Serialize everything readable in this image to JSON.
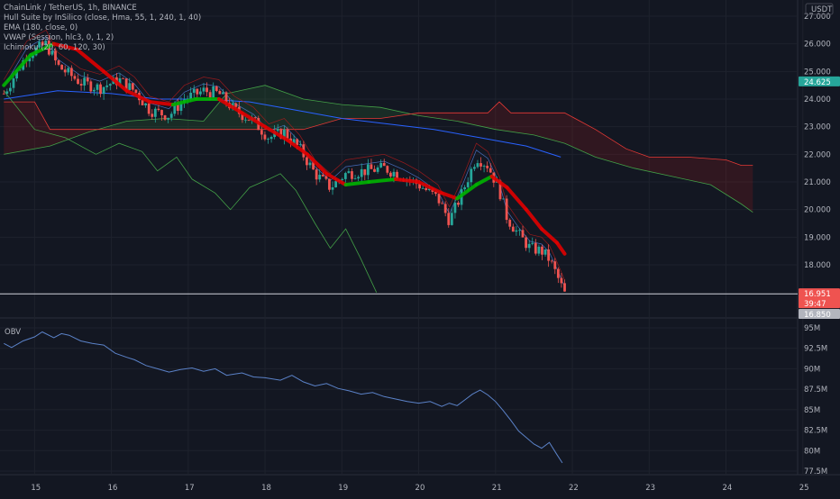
{
  "legend": [
    "ChainLink / TetherUS, 1h, BINANCE",
    "Hull Suite by InSilico (close, Hma, 55, 1, 240, 1, 40)",
    "EMA (180, close, 0)",
    "VWAP (Session, hlc3, 0, 1, 2)",
    "Ichimoku (20, 60, 120, 30)"
  ],
  "currency": "USDT",
  "colors": {
    "background": "#131722",
    "up": "#26a69a",
    "down": "#ef5350",
    "hull_up": "#00b300",
    "hull_down": "#e00000",
    "ema": "#2962ff",
    "vwap": "#5b8ff9",
    "cloud_green": "#388e3c",
    "cloud_red": "#b71c1c",
    "obv": "#5b82c8"
  },
  "chart_data": [
    {
      "type": "candlestick",
      "title": "ChainLink / TetherUS, 1h, BINANCE",
      "x_ticks": [
        "15",
        "16",
        "17",
        "18",
        "19",
        "20",
        "21",
        "22",
        "23",
        "24",
        "25"
      ],
      "y_ticks": [
        "27.000",
        "26.000",
        "25.000",
        "24.000",
        "23.000",
        "22.000",
        "21.000",
        "20.000",
        "19.000",
        "18.000"
      ],
      "ylim": [
        16.85,
        27.2
      ],
      "xlim": [
        14.55,
        25.05
      ],
      "price_labels": [
        {
          "text": "24.625",
          "value": 24.625,
          "color": "#26a69a"
        },
        {
          "text": "16.951",
          "value": 16.951,
          "color": "#ef5350",
          "countdown": "39:47"
        },
        {
          "text": "16.850",
          "value": 16.85,
          "color": "#b2b5be"
        }
      ],
      "horizontal_line": 16.95,
      "close_path": [
        [
          14.6,
          24.2
        ],
        [
          14.9,
          25.6
        ],
        [
          15.15,
          26.0
        ],
        [
          15.3,
          25.2
        ],
        [
          15.6,
          24.6
        ],
        [
          15.85,
          24.4
        ],
        [
          16.1,
          24.7
        ],
        [
          16.3,
          24.3
        ],
        [
          16.5,
          23.6
        ],
        [
          16.75,
          23.4
        ],
        [
          16.95,
          24.0
        ],
        [
          17.2,
          24.3
        ],
        [
          17.4,
          24.2
        ],
        [
          17.6,
          23.6
        ],
        [
          17.85,
          23.2
        ],
        [
          18.05,
          22.6
        ],
        [
          18.25,
          22.8
        ],
        [
          18.45,
          22.2
        ],
        [
          18.65,
          21.3
        ],
        [
          18.85,
          20.8
        ],
        [
          19.05,
          21.3
        ],
        [
          19.3,
          21.4
        ],
        [
          19.55,
          21.5
        ],
        [
          19.8,
          21.2
        ],
        [
          20.0,
          20.9
        ],
        [
          20.25,
          20.4
        ],
        [
          20.4,
          19.6
        ],
        [
          20.55,
          20.5
        ],
        [
          20.75,
          21.9
        ],
        [
          20.9,
          21.6
        ],
        [
          21.05,
          20.7
        ],
        [
          21.15,
          19.7
        ],
        [
          21.3,
          19.1
        ],
        [
          21.45,
          18.6
        ],
        [
          21.6,
          18.5
        ],
        [
          21.7,
          18.2
        ],
        [
          21.8,
          17.6
        ],
        [
          21.9,
          16.95
        ]
      ],
      "hull_path": [
        [
          14.6,
          24.5
        ],
        [
          14.95,
          25.6
        ],
        [
          15.25,
          26.0
        ],
        [
          15.55,
          25.8
        ],
        [
          15.9,
          25.0
        ],
        [
          16.2,
          24.3
        ],
        [
          16.5,
          23.9
        ],
        [
          16.8,
          23.8
        ],
        [
          17.1,
          24.0
        ],
        [
          17.4,
          24.0
        ],
        [
          17.7,
          23.5
        ],
        [
          18.0,
          23.0
        ],
        [
          18.3,
          22.5
        ],
        [
          18.55,
          22.0
        ],
        [
          18.8,
          21.3
        ],
        [
          19.05,
          20.9
        ],
        [
          19.35,
          21.0
        ],
        [
          19.7,
          21.1
        ],
        [
          20.0,
          21.0
        ],
        [
          20.3,
          20.6
        ],
        [
          20.5,
          20.4
        ],
        [
          20.75,
          20.9
        ],
        [
          20.95,
          21.2
        ],
        [
          21.15,
          20.8
        ],
        [
          21.4,
          20.0
        ],
        [
          21.6,
          19.3
        ],
        [
          21.8,
          18.8
        ],
        [
          21.9,
          18.4
        ]
      ],
      "ema_path": [
        [
          14.6,
          24.0
        ],
        [
          15.3,
          24.3
        ],
        [
          16.0,
          24.2
        ],
        [
          16.6,
          24.0
        ],
        [
          17.2,
          24.0
        ],
        [
          17.8,
          23.9
        ],
        [
          18.4,
          23.6
        ],
        [
          19.0,
          23.3
        ],
        [
          19.6,
          23.1
        ],
        [
          20.2,
          22.9
        ],
        [
          20.8,
          22.6
        ],
        [
          21.4,
          22.3
        ],
        [
          21.85,
          21.9
        ]
      ],
      "kumo_a": [
        [
          14.6,
          22.0
        ],
        [
          15.2,
          22.3
        ],
        [
          15.7,
          22.8
        ],
        [
          16.2,
          23.2
        ],
        [
          16.7,
          23.3
        ],
        [
          17.2,
          23.2
        ],
        [
          17.5,
          24.2
        ],
        [
          18.0,
          24.5
        ],
        [
          18.5,
          24.0
        ],
        [
          19.0,
          23.8
        ],
        [
          19.5,
          23.7
        ],
        [
          20.0,
          23.4
        ],
        [
          20.5,
          23.2
        ],
        [
          21.0,
          22.9
        ],
        [
          21.5,
          22.7
        ],
        [
          21.9,
          22.4
        ],
        [
          22.3,
          21.9
        ],
        [
          22.8,
          21.5
        ],
        [
          23.3,
          21.2
        ],
        [
          23.8,
          20.9
        ],
        [
          24.2,
          20.2
        ],
        [
          24.35,
          19.9
        ]
      ],
      "kumo_b": [
        [
          14.6,
          23.9
        ],
        [
          15.0,
          23.9
        ],
        [
          15.2,
          22.9
        ],
        [
          16.5,
          22.9
        ],
        [
          17.5,
          22.9
        ],
        [
          18.5,
          22.9
        ],
        [
          19.0,
          23.3
        ],
        [
          19.5,
          23.3
        ],
        [
          20.0,
          23.5
        ],
        [
          20.5,
          23.5
        ],
        [
          20.9,
          23.5
        ],
        [
          21.05,
          23.9
        ],
        [
          21.2,
          23.5
        ],
        [
          21.9,
          23.5
        ],
        [
          22.3,
          22.9
        ],
        [
          22.7,
          22.2
        ],
        [
          23.0,
          21.9
        ],
        [
          23.5,
          21.9
        ],
        [
          24.0,
          21.8
        ],
        [
          24.2,
          21.6
        ],
        [
          24.35,
          21.6
        ]
      ],
      "lagging_span": [
        [
          14.6,
          24.3
        ],
        [
          15.0,
          22.9
        ],
        [
          15.4,
          22.6
        ],
        [
          15.8,
          22.0
        ],
        [
          16.1,
          22.4
        ],
        [
          16.4,
          22.1
        ],
        [
          16.6,
          21.4
        ],
        [
          16.85,
          21.9
        ],
        [
          17.05,
          21.1
        ],
        [
          17.35,
          20.6
        ],
        [
          17.55,
          20.0
        ],
        [
          17.8,
          20.8
        ],
        [
          18.05,
          21.1
        ],
        [
          18.2,
          21.3
        ],
        [
          18.4,
          20.7
        ],
        [
          18.65,
          19.5
        ],
        [
          18.85,
          18.6
        ],
        [
          19.05,
          19.3
        ],
        [
          19.25,
          18.2
        ],
        [
          19.45,
          17.0
        ]
      ]
    },
    {
      "type": "line",
      "title": "OBV",
      "y_ticks": [
        "95M",
        "92.5M",
        "90M",
        "87.5M",
        "85M",
        "82.5M",
        "80M",
        "77.5M"
      ],
      "ylim": [
        76.5,
        95.5
      ],
      "x": [
        14.6,
        14.7,
        14.85,
        15.0,
        15.1,
        15.25,
        15.35,
        15.45,
        15.6,
        15.75,
        15.9,
        16.05,
        16.2,
        16.3,
        16.45,
        16.6,
        16.75,
        16.9,
        17.05,
        17.2,
        17.35,
        17.5,
        17.7,
        17.85,
        18.0,
        18.2,
        18.35,
        18.5,
        18.65,
        18.8,
        18.95,
        19.1,
        19.25,
        19.4,
        19.55,
        19.7,
        19.85,
        20.0,
        20.15,
        20.3,
        20.4,
        20.5,
        20.6,
        20.7,
        20.8,
        20.9,
        21.0,
        21.1,
        21.2,
        21.3,
        21.4,
        21.5,
        21.6,
        21.7,
        21.8,
        21.87
      ],
      "values": [
        93.1,
        92.6,
        93.4,
        93.9,
        94.5,
        93.8,
        94.3,
        94.1,
        93.4,
        93.1,
        92.9,
        91.9,
        91.4,
        91.1,
        90.4,
        90.0,
        89.6,
        89.9,
        90.1,
        89.7,
        90.0,
        89.2,
        89.5,
        89.0,
        88.9,
        88.6,
        89.2,
        88.4,
        87.9,
        88.2,
        87.6,
        87.3,
        86.9,
        87.1,
        86.6,
        86.3,
        86.0,
        85.8,
        86.0,
        85.4,
        85.8,
        85.5,
        86.2,
        86.9,
        87.4,
        86.8,
        86.0,
        84.9,
        83.7,
        82.4,
        81.6,
        80.8,
        80.3,
        81.0,
        79.5,
        78.5
      ]
    }
  ]
}
